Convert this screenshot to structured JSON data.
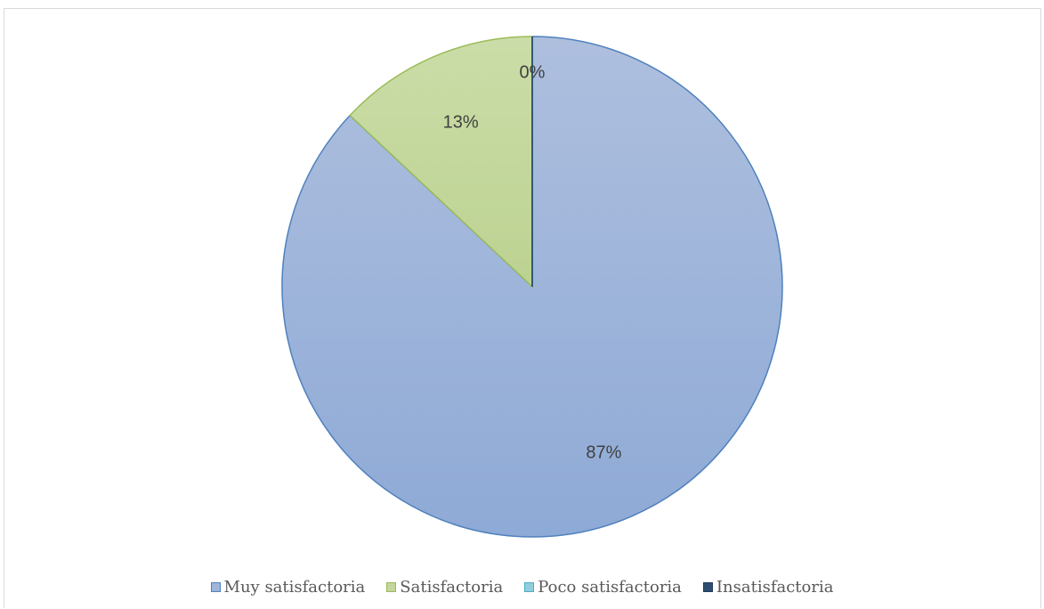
{
  "chart_data": {
    "type": "pie",
    "categories": [
      "Muy satisfactoria",
      "Satisfactoria",
      "Poco satisfactoria",
      "Insatisfactoria"
    ],
    "values": [
      87,
      13,
      0,
      0
    ],
    "data_labels": [
      "87%",
      "13%",
      "",
      "0%"
    ],
    "colors": {
      "fill": [
        "#9fb5da",
        "#c3d69b",
        "#93cddd",
        "#2f4d6e"
      ],
      "stroke": [
        "#4f81bd",
        "#9bbb59",
        "#4bacc6",
        "#1f3a5f"
      ]
    },
    "legend_position": "bottom"
  }
}
